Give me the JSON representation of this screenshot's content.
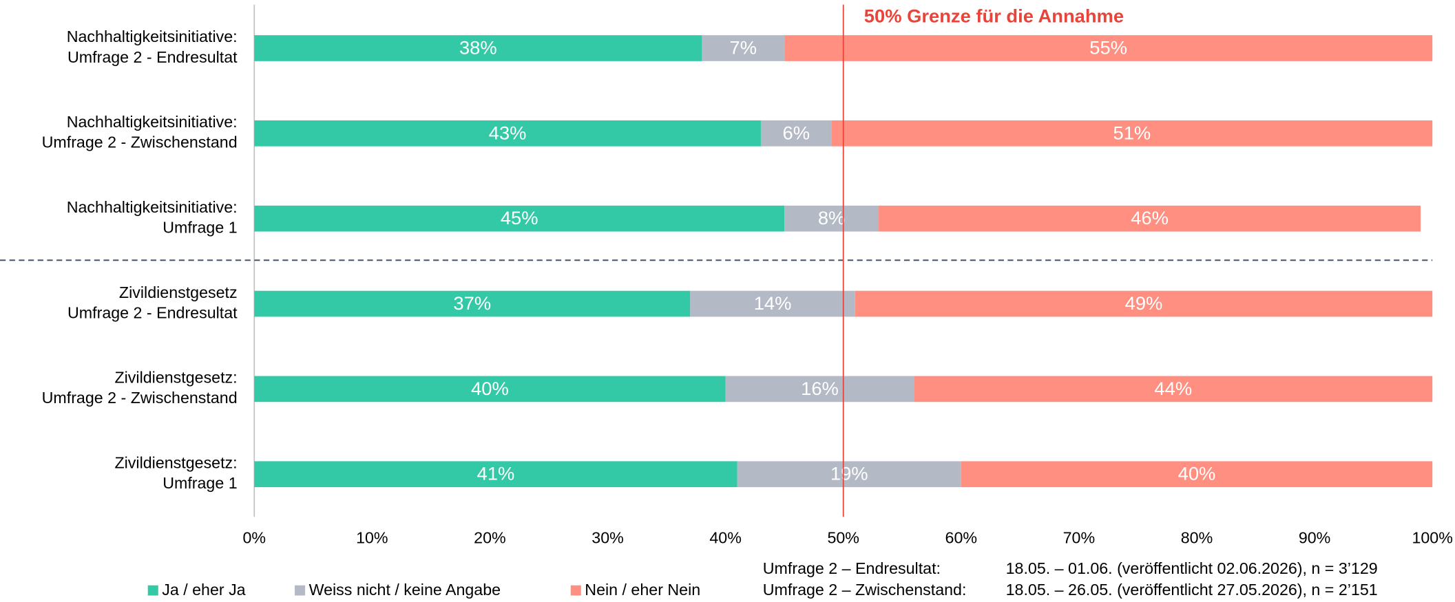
{
  "chart_data": {
    "type": "stacked-barh",
    "categories": [
      [
        "Nachhaltigkeitsinitiative:",
        "Umfrage 2 - Endresultat"
      ],
      [
        "Nachhaltigkeitsinitiative:",
        "Umfrage 2 - Zwischenstand"
      ],
      [
        "Nachhaltigkeitsinitiative:",
        "Umfrage 1"
      ],
      [
        "Zivildienstgesetz",
        "Umfrage 2 - Endresultat"
      ],
      [
        "Zivildienstgesetz:",
        "Umfrage 2 - Zwischenstand"
      ],
      [
        "Zivildienstgesetz:",
        "Umfrage 1"
      ]
    ],
    "series": [
      {
        "name": "Ja / eher Ja",
        "color": "#33c9a7",
        "values": [
          38,
          43,
          45,
          37,
          40,
          41
        ],
        "value_labels": [
          "38%",
          "43%",
          "45%",
          "37%",
          "40%",
          "41%"
        ]
      },
      {
        "name": "Weiss nicht / keine Angabe",
        "color": "#b3b9c5",
        "values": [
          7,
          6,
          8,
          14,
          16,
          19
        ],
        "value_labels": [
          "7%",
          "6%",
          "8%",
          "14%",
          "16%",
          "19%"
        ]
      },
      {
        "name": "Nein / eher Nein",
        "color": "#ff8f80",
        "values": [
          55,
          51,
          46,
          49,
          44,
          40
        ],
        "value_labels": [
          "55%",
          "51%",
          "46%",
          "49%",
          "44%",
          "40%"
        ]
      }
    ],
    "xlim": [
      0,
      100
    ],
    "xticks": [
      {
        "value": 0,
        "label": "0%"
      },
      {
        "value": 10,
        "label": "10%"
      },
      {
        "value": 20,
        "label": "20%"
      },
      {
        "value": 30,
        "label": "30%"
      },
      {
        "value": 40,
        "label": "40%"
      },
      {
        "value": 50,
        "label": "50%"
      },
      {
        "value": 60,
        "label": "60%"
      },
      {
        "value": 70,
        "label": "70%"
      },
      {
        "value": 80,
        "label": "80%"
      },
      {
        "value": 90,
        "label": "90%"
      },
      {
        "value": 100,
        "label": "100%"
      }
    ],
    "reference_line": {
      "value": 50,
      "label": "50% Grenze für die Annahme",
      "color": "#e8443a"
    },
    "notes": [
      {
        "label": "Umfrage 2 – Endresultat:",
        "text": "18.05. – 01.06. (veröffentlicht 02.06.2026), n = 3’129"
      },
      {
        "label": "Umfrage 2 – Zwischenstand:",
        "text": "18.05. – 26.05. (veröffentlicht 27.05.2026), n = 2’151"
      }
    ]
  }
}
